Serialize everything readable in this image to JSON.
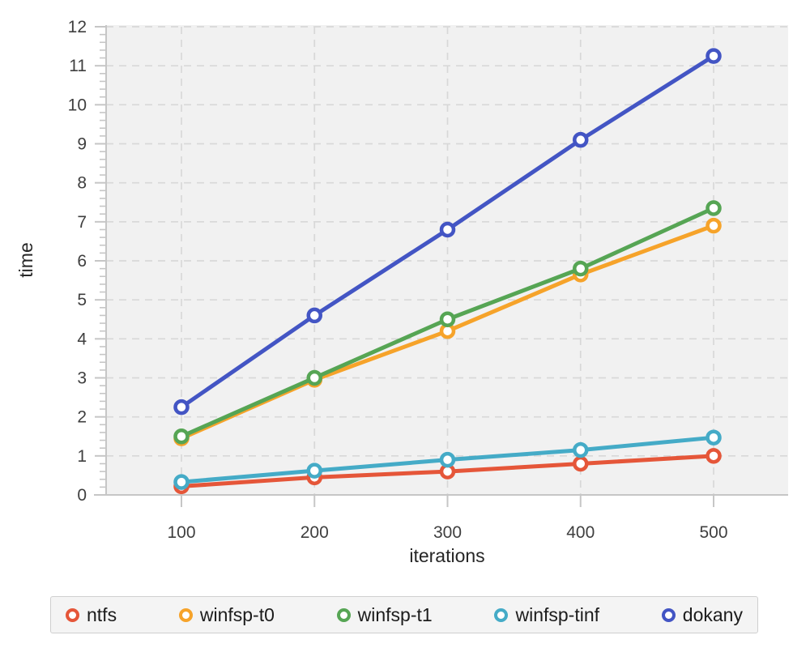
{
  "chart_data": {
    "type": "line",
    "x": [
      100,
      200,
      300,
      400,
      500
    ],
    "series": [
      {
        "name": "ntfs",
        "color": "#E55639",
        "values": [
          0.22,
          0.45,
          0.6,
          0.8,
          1.0
        ]
      },
      {
        "name": "winfsp-t0",
        "color": "#F6A32A",
        "values": [
          1.45,
          2.95,
          4.2,
          5.65,
          6.9
        ]
      },
      {
        "name": "winfsp-t1",
        "color": "#56A554",
        "values": [
          1.5,
          3.0,
          4.5,
          5.8,
          7.35
        ]
      },
      {
        "name": "winfsp-tinf",
        "color": "#45ABC7",
        "values": [
          0.33,
          0.62,
          0.9,
          1.15,
          1.47
        ]
      },
      {
        "name": "dokany",
        "color": "#4355C4",
        "values": [
          2.25,
          4.6,
          6.8,
          9.1,
          11.25
        ]
      }
    ],
    "title": "",
    "xlabel": "iterations",
    "ylabel": "time",
    "xticks": [
      100,
      200,
      300,
      400,
      500
    ],
    "yticks": [
      0,
      1,
      2,
      3,
      4,
      5,
      6,
      7,
      8,
      9,
      10,
      11,
      12
    ],
    "xlim": [
      43,
      506
    ],
    "ylim": [
      0,
      12
    ],
    "y_minor_tick_step": 0.2,
    "grid": "dashed",
    "marker": "circle-open",
    "legend_position": "bottom"
  },
  "styles": {
    "plot_bg": "#f1f1f1",
    "grid_color": "#d8d8d8",
    "axis_color": "#c6c6c6",
    "tick_label_color": "#3f3f3f",
    "axis_label_color": "#262626",
    "legend_bg": "#f4f4f4",
    "legend_border": "#cfcfcf",
    "page_bg": "#ffffff"
  }
}
